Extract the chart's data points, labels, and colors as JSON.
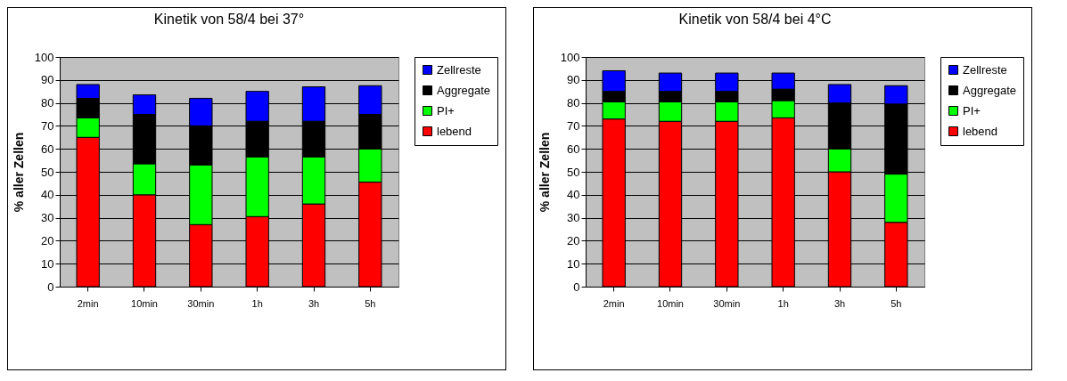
{
  "chart_data": [
    {
      "type": "bar",
      "title": "Kinetik von 58/4 bei 37°",
      "ylabel": "% aller Zellen",
      "categories": [
        "2min",
        "10min",
        "30min",
        "1h",
        "3h",
        "5h"
      ],
      "stacked": true,
      "ylim": [
        0,
        100
      ],
      "yticks": [
        0,
        10,
        20,
        30,
        40,
        50,
        60,
        70,
        80,
        90,
        100
      ],
      "grid": "y",
      "legend": "right",
      "series": [
        {
          "name": "lebend",
          "color": "#ff0000",
          "values": [
            65,
            40,
            27,
            30.5,
            36,
            45.5
          ]
        },
        {
          "name": "PI+",
          "color": "#00ff00",
          "values": [
            8.5,
            13.5,
            26,
            26,
            20.5,
            14.5
          ]
        },
        {
          "name": "Aggregate",
          "color": "#000000",
          "values": [
            8.5,
            21.5,
            17,
            15.5,
            15.5,
            15
          ]
        },
        {
          "name": "Zellreste",
          "color": "#0000ff",
          "values": [
            6,
            8.5,
            12,
            13,
            15,
            12.5
          ]
        }
      ]
    },
    {
      "type": "bar",
      "title": "Kinetik von 58/4 bei 4°C",
      "ylabel": "% aller Zellen",
      "categories": [
        "2min",
        "10min",
        "30min",
        "1h",
        "3h",
        "5h"
      ],
      "stacked": true,
      "ylim": [
        0,
        100
      ],
      "yticks": [
        0,
        10,
        20,
        30,
        40,
        50,
        60,
        70,
        80,
        90,
        100
      ],
      "grid": "y",
      "legend": "right",
      "series": [
        {
          "name": "lebend",
          "color": "#ff0000",
          "values": [
            73,
            72,
            72,
            73.5,
            50,
            28
          ]
        },
        {
          "name": "PI+",
          "color": "#00ff00",
          "values": [
            7.5,
            8.5,
            8.5,
            7.5,
            10,
            21
          ]
        },
        {
          "name": "Aggregate",
          "color": "#000000",
          "values": [
            4.5,
            4.5,
            4.5,
            5,
            20,
            30.5
          ]
        },
        {
          "name": "Zellreste",
          "color": "#0000ff",
          "values": [
            9,
            8,
            8,
            7,
            8,
            8
          ]
        }
      ]
    }
  ]
}
